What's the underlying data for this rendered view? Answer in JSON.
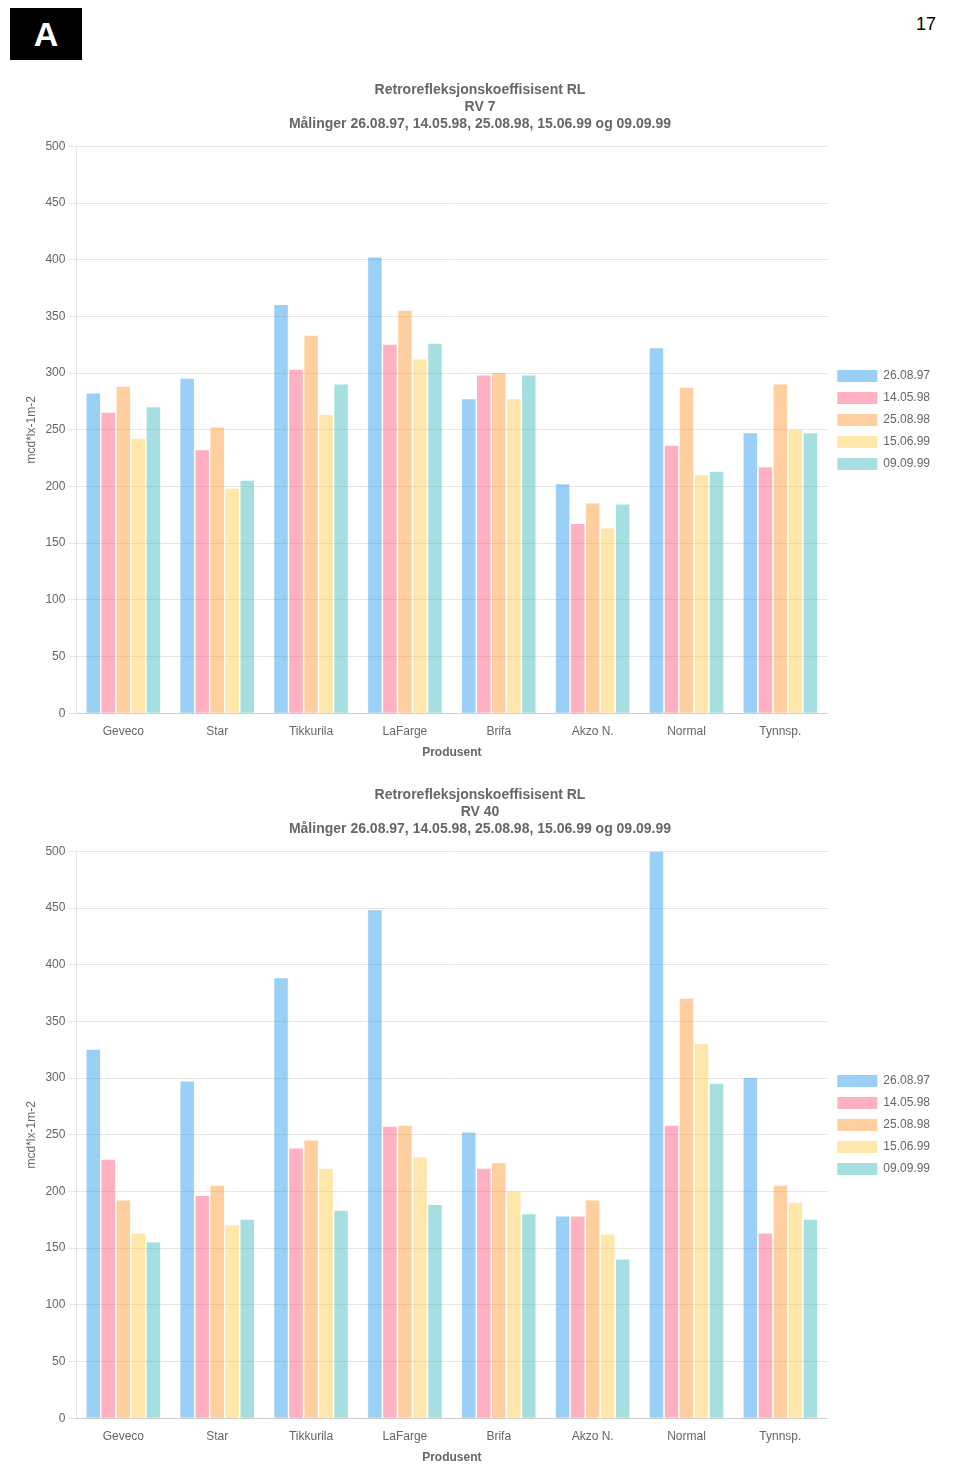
{
  "chart_data": [
    {
      "type": "bar",
      "title": [
        "Retrorefleksjonskoeffisisent RL",
        "RV 7",
        "Målinger 26.08.97, 14.05.98, 25.08.98, 15.06.99 og 09.09.99"
      ],
      "x_label": "Produsent",
      "y_label": "mcd*lx-1m-2",
      "categories": [
        "Geveco",
        "Star",
        "Tikkurila",
        "LaFarge",
        "Brifa",
        "Akzo N.",
        "Normal",
        "Tynnsp."
      ],
      "series": [
        {
          "name": "26.08.97",
          "values": [
            282,
            295,
            360,
            402,
            277,
            202,
            322,
            247
          ]
        },
        {
          "name": "14.05.98",
          "values": [
            265,
            232,
            303,
            325,
            298,
            167,
            236,
            217
          ]
        },
        {
          "name": "25.08.98",
          "values": [
            288,
            252,
            333,
            355,
            300,
            185,
            287,
            290
          ]
        },
        {
          "name": "15.06.99",
          "values": [
            242,
            198,
            263,
            312,
            277,
            163,
            210,
            250
          ]
        },
        {
          "name": "09.09.99",
          "values": [
            270,
            205,
            290,
            326,
            298,
            184,
            213,
            247
          ]
        }
      ],
      "ylim": [
        0,
        500
      ],
      "yticks": [
        0,
        50,
        100,
        150,
        200,
        250,
        300,
        350,
        400,
        450,
        500
      ],
      "grid": true,
      "legend": "right",
      "annotations": [
        "17",
        "A"
      ]
    },
    {
      "type": "bar",
      "title": [
        "Retrorefleksjonskoeffisisent RL",
        "RV 40",
        "Målinger 26.08.97, 14.05.98, 25.08.98, 15.06.99 og 09.09.99"
      ],
      "x_label": "Produsent",
      "y_label": "mcd*lx-1m-2",
      "categories": [
        "Geveco",
        "Star",
        "Tikkurila",
        "LaFarge",
        "Brifa",
        "Akzo N.",
        "Normal",
        "Tynnsp."
      ],
      "series": [
        {
          "name": "26.08.97",
          "values": [
            325,
            297,
            388,
            448,
            252,
            178,
            500,
            300
          ]
        },
        {
          "name": "14.05.98",
          "values": [
            228,
            196,
            238,
            257,
            220,
            178,
            258,
            163
          ]
        },
        {
          "name": "25.08.98",
          "values": [
            192,
            205,
            245,
            258,
            225,
            192,
            370,
            205
          ]
        },
        {
          "name": "15.06.99",
          "values": [
            163,
            170,
            220,
            230,
            200,
            162,
            330,
            190
          ]
        },
        {
          "name": "09.09.99",
          "values": [
            155,
            175,
            183,
            188,
            180,
            140,
            295,
            175
          ]
        }
      ],
      "ylim": [
        0,
        500
      ],
      "yticks": [
        0,
        50,
        100,
        150,
        200,
        250,
        300,
        350,
        400,
        450,
        500
      ],
      "grid": true,
      "legend": "right"
    }
  ]
}
